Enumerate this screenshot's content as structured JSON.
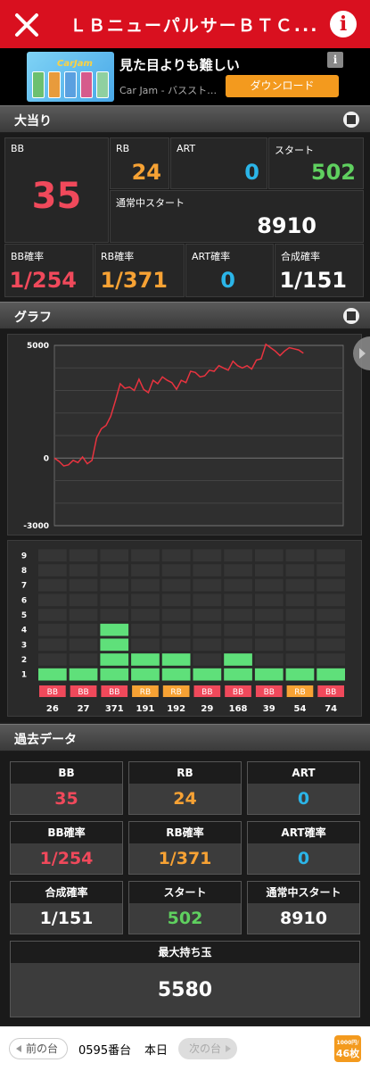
{
  "header": {
    "title": "ＬＢニューパルサーＢＴＣ..."
  },
  "ad": {
    "app_logo": "CarJam",
    "title": "見た目よりも難しい",
    "subtitle": "Car Jam - バススト…",
    "button": "ダウンロード",
    "info_icon": "i"
  },
  "sections": {
    "jackpot": "大当り",
    "graph": "グラフ",
    "past": "過去データ"
  },
  "jackpot": {
    "bb": {
      "label": "BB",
      "value": "35"
    },
    "rb": {
      "label": "RB",
      "value": "24"
    },
    "art": {
      "label": "ART",
      "value": "0"
    },
    "start": {
      "label": "スタート",
      "value": "502"
    },
    "normal_start": {
      "label": "通常中スタート",
      "value": "8910"
    },
    "bb_rate": {
      "label": "BB確率",
      "value": "1/254"
    },
    "rb_rate": {
      "label": "RB確率",
      "value": "1/371"
    },
    "art_rate": {
      "label": "ART確率",
      "value": "0"
    },
    "combined_rate": {
      "label": "合成確率",
      "value": "1/151"
    }
  },
  "chart_data": [
    {
      "type": "line",
      "y_ticks": [
        "5000",
        "0",
        "-3000"
      ],
      "ylim": [
        -3000,
        5000
      ],
      "x": [
        0,
        1,
        2,
        3,
        4,
        5,
        6,
        7,
        8,
        9,
        10,
        11,
        12,
        13,
        14,
        15,
        16,
        17,
        18,
        19,
        20,
        21,
        22,
        23,
        24,
        25,
        26,
        27,
        28,
        29,
        30,
        31,
        32,
        33,
        34,
        35,
        36,
        37,
        38,
        39,
        40,
        41,
        42,
        43,
        44,
        45,
        46,
        47,
        48,
        49,
        50,
        51,
        52,
        53
      ],
      "values": [
        0,
        -150,
        -350,
        -300,
        -100,
        -200,
        50,
        -250,
        -100,
        900,
        1300,
        1450,
        1850,
        2550,
        3300,
        3100,
        3150,
        3000,
        3500,
        3050,
        2900,
        3450,
        3300,
        3600,
        3450,
        3350,
        3050,
        3450,
        3350,
        3850,
        3800,
        3600,
        3650,
        3900,
        3850,
        4100,
        4000,
        3900,
        4300,
        4100,
        4000,
        4100,
        3950,
        4350,
        4400,
        5050,
        4900,
        4750,
        4550,
        4750,
        4900,
        4850,
        4800,
        4650
      ]
    },
    {
      "type": "bar",
      "y_ticks": [
        "1",
        "2",
        "3",
        "4",
        "5",
        "6",
        "7",
        "8",
        "9"
      ],
      "ylim": [
        0,
        9
      ],
      "categories": [
        "26",
        "27",
        "371",
        "191",
        "192",
        "29",
        "168",
        "39",
        "54",
        "74"
      ],
      "values": [
        1,
        1,
        4,
        2,
        2,
        1,
        2,
        1,
        1,
        1
      ],
      "bar_types": [
        "BB",
        "BB",
        "BB",
        "RB",
        "RB",
        "BB",
        "BB",
        "BB",
        "RB",
        "BB"
      ]
    }
  ],
  "past": {
    "bb": {
      "label": "BB",
      "value": "35"
    },
    "rb": {
      "label": "RB",
      "value": "24"
    },
    "art": {
      "label": "ART",
      "value": "0"
    },
    "bb_rate": {
      "label": "BB確率",
      "value": "1/254"
    },
    "rb_rate": {
      "label": "RB確率",
      "value": "1/371"
    },
    "art_rate": {
      "label": "ART確率",
      "value": "0"
    },
    "combined_rate": {
      "label": "合成確率",
      "value": "1/151"
    },
    "start": {
      "label": "スタート",
      "value": "502"
    },
    "normal_start": {
      "label": "通常中スタート",
      "value": "8910"
    },
    "max_balls": {
      "label": "最大持ち玉",
      "value": "5580"
    }
  },
  "bottom": {
    "prev": "前の台",
    "machine_no": "0595番台",
    "today": "本日",
    "next": "次の台",
    "rate_top": "1000円/",
    "rate_bottom": "46枚"
  },
  "colors": {
    "header": "#d9101f",
    "bb": "#f0495b",
    "rb": "#f7a234",
    "art": "#2bb5e8",
    "start": "#5fd05f",
    "bar_fill": "#5fe07a",
    "line": "#e8333f"
  }
}
